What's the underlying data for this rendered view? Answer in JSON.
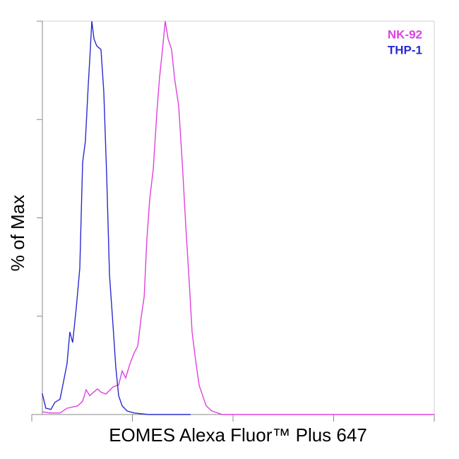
{
  "chart_data": {
    "type": "line",
    "x_label": "EOMES Alexa Fluor™ Plus 647",
    "y_label": "% of Max",
    "xlog": true,
    "xlim": [
      10,
      100000
    ],
    "xticks": [
      10,
      100,
      1000,
      10000,
      100000
    ],
    "ylim": [
      0,
      100
    ],
    "yticks": [
      0,
      25,
      50,
      75,
      100
    ],
    "legend": "upper right",
    "series": [
      {
        "name": "NK-92",
        "color": "#e040e0",
        "x": [
          12.7,
          15.0,
          19.1,
          22.4,
          24.3,
          28.6,
          32.0,
          34.7,
          37.6,
          40.8,
          45.0,
          48.7,
          54.6,
          64.1,
          73.0,
          79.1,
          85.8,
          94.5,
          104,
          113,
          122,
          131,
          139,
          149,
          161,
          175,
          186,
          199,
          212,
          226,
          245,
          262,
          288,
          313,
          339,
          367,
          392,
          425,
          460,
          499,
          541,
          615,
          785,
          1380,
          100000
        ],
        "values": [
          0.7,
          0.4,
          0.4,
          1.6,
          1.8,
          2.2,
          3.4,
          6.3,
          4.8,
          5.6,
          6.5,
          5.7,
          5.2,
          7.0,
          7.5,
          11.1,
          9.3,
          12.9,
          15.6,
          17.4,
          24.6,
          30.0,
          44.3,
          55.1,
          62.3,
          76.7,
          85.6,
          92.8,
          100,
          95.5,
          92.8,
          85.6,
          78.5,
          64.1,
          47.9,
          33.6,
          21.0,
          13.8,
          7.5,
          4.8,
          2.2,
          0.9,
          0,
          0,
          0
        ]
      },
      {
        "name": "THP-1",
        "color": "#2a2ad0",
        "x": [
          12.7,
          13.8,
          15.5,
          17.0,
          19.1,
          20.7,
          22.4,
          23.9,
          25.5,
          27.7,
          30.0,
          32.0,
          34.1,
          36.4,
          38.2,
          39.5,
          41.5,
          44.2,
          48.7,
          52.0,
          55.5,
          59.2,
          64.1,
          68.4,
          73.0,
          79.1,
          88.6,
          104,
          144,
          379
        ],
        "values": [
          5.4,
          1.6,
          1.3,
          3.1,
          3.9,
          8.4,
          12.9,
          21.0,
          18.3,
          27.3,
          37.2,
          64.1,
          69.5,
          83.8,
          92.8,
          100,
          95.5,
          93.7,
          92.8,
          82.0,
          60.5,
          35.4,
          22.8,
          12.0,
          4.8,
          2.2,
          0.9,
          0.4,
          0,
          0
        ]
      }
    ]
  }
}
